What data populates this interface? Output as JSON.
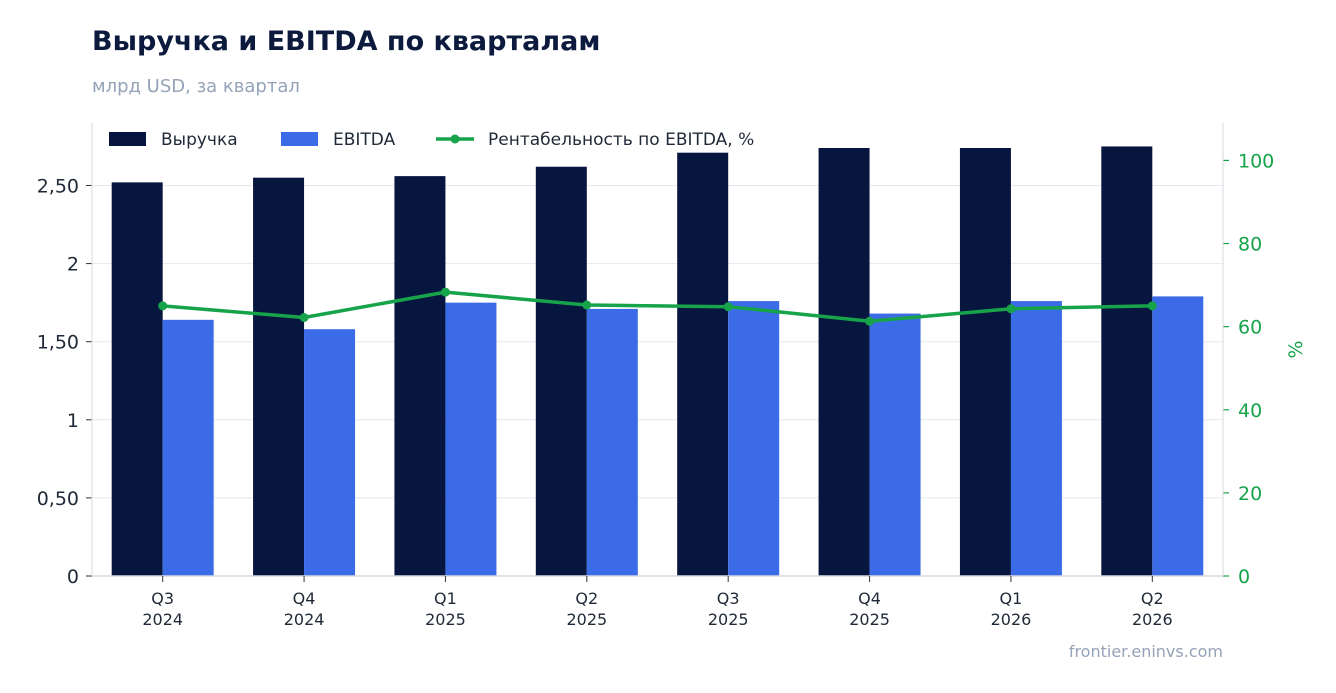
{
  "title": "Выручка и EBITDA по кварталам",
  "subtitle": "млрд USD, за квартал",
  "source": "frontier.eninvs.com",
  "colors": {
    "revenue": "#06163f",
    "ebitda": "#3b6be6",
    "margin": "#16a34a",
    "grid": "#e5e8ee",
    "axis": "#d5d9e0",
    "text": "#1f2937",
    "muted": "#94a3b8"
  },
  "chart_data": {
    "type": "bar",
    "categories": [
      [
        "Q3",
        "2024"
      ],
      [
        "Q4",
        "2024"
      ],
      [
        "Q1",
        "2025"
      ],
      [
        "Q2",
        "2025"
      ],
      [
        "Q3",
        "2025"
      ],
      [
        "Q4",
        "2025"
      ],
      [
        "Q1",
        "2026"
      ],
      [
        "Q2",
        "2026"
      ]
    ],
    "series": [
      {
        "name": "Выручка",
        "type": "bar",
        "axis": "left",
        "values": [
          2.52,
          2.55,
          2.56,
          2.62,
          2.71,
          2.74,
          2.74,
          2.75
        ]
      },
      {
        "name": "EBITDA",
        "type": "bar",
        "axis": "left",
        "values": [
          1.64,
          1.58,
          1.75,
          1.71,
          1.76,
          1.68,
          1.76,
          1.79
        ]
      },
      {
        "name": "Рентабельность по EBITDA, %",
        "type": "line",
        "axis": "right",
        "values": [
          65.0,
          62.2,
          68.3,
          65.2,
          64.8,
          61.3,
          64.3,
          65.0
        ]
      }
    ],
    "y_left": {
      "label": "",
      "ylim": [
        0,
        2.9
      ],
      "ticks": [
        0,
        0.5,
        1,
        1.5,
        2,
        2.5
      ],
      "tick_labels": [
        "0",
        "0,50",
        "1",
        "1,50",
        "2",
        "2,50"
      ]
    },
    "y_right": {
      "label": "%",
      "ylim": [
        0,
        109
      ],
      "ticks": [
        0,
        20,
        40,
        60,
        80,
        100
      ],
      "tick_labels": [
        "0",
        "20",
        "40",
        "60",
        "80",
        "100"
      ]
    },
    "grid": true,
    "legend": "top-left"
  }
}
